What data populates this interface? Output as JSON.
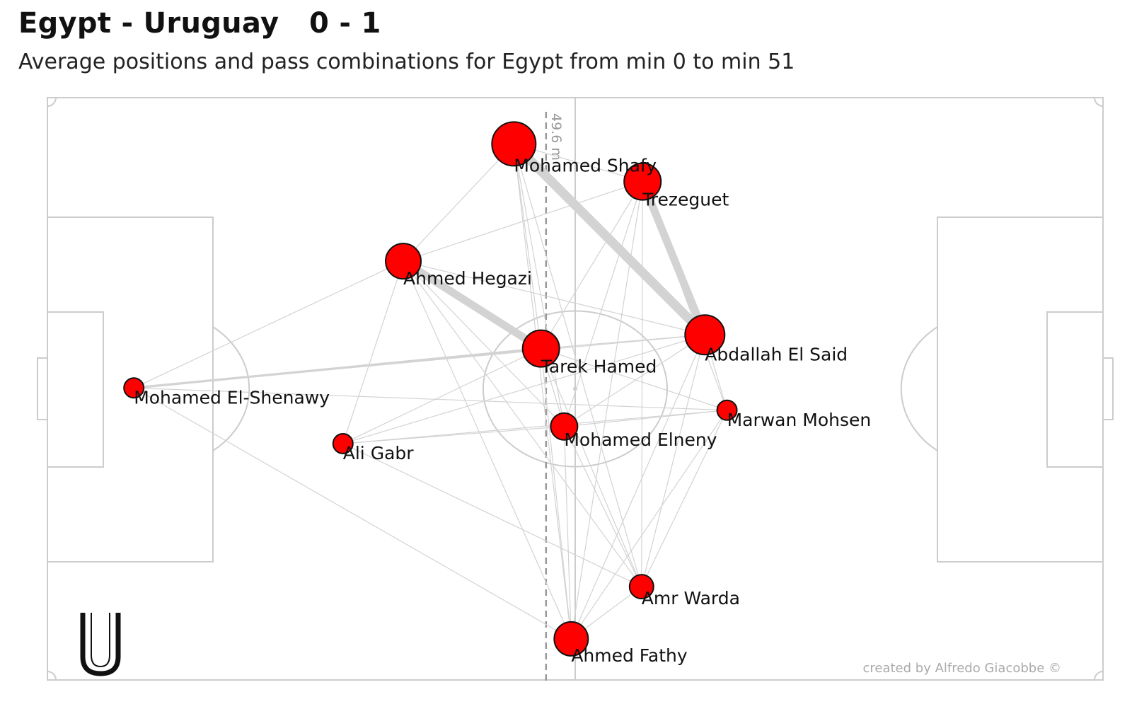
{
  "header": {
    "title": "Egypt - Uruguay   0 - 1",
    "subtitle": "Average positions and pass combinations for Egypt from min 0 to min 51"
  },
  "footer": {
    "credit": "created by Alfredo Giacobbe ©",
    "logo_letter": "U"
  },
  "colors": {
    "node_fill": "#ff0000",
    "node_stroke": "#111111",
    "edge": "#d3d3d3",
    "pitch_lines": "#cccccc",
    "avg_line": "#999999"
  },
  "chart_data": {
    "type": "network",
    "pitch": {
      "length_m": 105,
      "width_m": 68
    },
    "average_line": {
      "x_m": 49.6,
      "label": "49.6 m"
    },
    "nodes": [
      {
        "name": "Mohamed El-Shenawy",
        "x": 8.6,
        "y": 34.1,
        "size": 14
      },
      {
        "name": "Ali Gabr",
        "x": 29.4,
        "y": 27.6,
        "size": 14
      },
      {
        "name": "Ahmed Hegazi",
        "x": 35.4,
        "y": 48.9,
        "size": 25
      },
      {
        "name": "Tarek Hamed",
        "x": 49.1,
        "y": 38.7,
        "size": 26
      },
      {
        "name": "Mohamed Shafy",
        "x": 46.4,
        "y": 62.6,
        "size": 31
      },
      {
        "name": "Trezeguet",
        "x": 59.2,
        "y": 58.2,
        "size": 26
      },
      {
        "name": "Abdallah El Said",
        "x": 65.4,
        "y": 40.3,
        "size": 28
      },
      {
        "name": "Mohamed Elneny",
        "x": 51.4,
        "y": 29.6,
        "size": 19
      },
      {
        "name": "Marwan Mohsen",
        "x": 67.6,
        "y": 31.5,
        "size": 14
      },
      {
        "name": "Amr Warda",
        "x": 59.1,
        "y": 10.9,
        "size": 17
      },
      {
        "name": "Ahmed Fathy",
        "x": 52.1,
        "y": 4.8,
        "size": 24
      }
    ],
    "edges": [
      {
        "from": "Mohamed Shafy",
        "to": "Abdallah El Said",
        "weight": 6
      },
      {
        "from": "Trezeguet",
        "to": "Abdallah El Said",
        "weight": 5
      },
      {
        "from": "Ahmed Hegazi",
        "to": "Tarek Hamed",
        "weight": 5
      },
      {
        "from": "Mohamed El-Shenawy",
        "to": "Tarek Hamed",
        "weight": 1.5
      },
      {
        "from": "Mohamed El-Shenawy",
        "to": "Ahmed Hegazi",
        "weight": 1
      },
      {
        "from": "Mohamed El-Shenawy",
        "to": "Abdallah El Said",
        "weight": 1
      },
      {
        "from": "Mohamed El-Shenawy",
        "to": "Marwan Mohsen",
        "weight": 1
      },
      {
        "from": "Mohamed El-Shenawy",
        "to": "Ahmed Fathy",
        "weight": 1
      },
      {
        "from": "Ali Gabr",
        "to": "Ahmed Hegazi",
        "weight": 1
      },
      {
        "from": "Ali Gabr",
        "to": "Tarek Hamed",
        "weight": 1
      },
      {
        "from": "Ali Gabr",
        "to": "Mohamed Elneny",
        "weight": 1
      },
      {
        "from": "Ali Gabr",
        "to": "Marwan Mohsen",
        "weight": 1
      },
      {
        "from": "Ali Gabr",
        "to": "Abdallah El Said",
        "weight": 1
      },
      {
        "from": "Ali Gabr",
        "to": "Amr Warda",
        "weight": 1
      },
      {
        "from": "Ahmed Hegazi",
        "to": "Mohamed Shafy",
        "weight": 1
      },
      {
        "from": "Ahmed Hegazi",
        "to": "Trezeguet",
        "weight": 1
      },
      {
        "from": "Ahmed Hegazi",
        "to": "Abdallah El Said",
        "weight": 1
      },
      {
        "from": "Ahmed Hegazi",
        "to": "Mohamed Elneny",
        "weight": 1
      },
      {
        "from": "Ahmed Hegazi",
        "to": "Ahmed Fathy",
        "weight": 1
      },
      {
        "from": "Ahmed Hegazi",
        "to": "Amr Warda",
        "weight": 1
      },
      {
        "from": "Tarek Hamed",
        "to": "Mohamed Shafy",
        "weight": 1
      },
      {
        "from": "Tarek Hamed",
        "to": "Trezeguet",
        "weight": 1
      },
      {
        "from": "Tarek Hamed",
        "to": "Abdallah El Said",
        "weight": 1
      },
      {
        "from": "Tarek Hamed",
        "to": "Mohamed Elneny",
        "weight": 1
      },
      {
        "from": "Tarek Hamed",
        "to": "Ahmed Fathy",
        "weight": 1
      },
      {
        "from": "Tarek Hamed",
        "to": "Amr Warda",
        "weight": 1
      },
      {
        "from": "Tarek Hamed",
        "to": "Marwan Mohsen",
        "weight": 1
      },
      {
        "from": "Mohamed Shafy",
        "to": "Trezeguet",
        "weight": 1
      },
      {
        "from": "Mohamed Shafy",
        "to": "Mohamed Elneny",
        "weight": 1
      },
      {
        "from": "Mohamed Shafy",
        "to": "Ahmed Fathy",
        "weight": 1
      },
      {
        "from": "Mohamed Shafy",
        "to": "Amr Warda",
        "weight": 1
      },
      {
        "from": "Trezeguet",
        "to": "Mohamed Elneny",
        "weight": 1
      },
      {
        "from": "Trezeguet",
        "to": "Ahmed Fathy",
        "weight": 1
      },
      {
        "from": "Trezeguet",
        "to": "Amr Warda",
        "weight": 1
      },
      {
        "from": "Trezeguet",
        "to": "Marwan Mohsen",
        "weight": 1
      },
      {
        "from": "Abdallah El Said",
        "to": "Mohamed Elneny",
        "weight": 1
      },
      {
        "from": "Abdallah El Said",
        "to": "Marwan Mohsen",
        "weight": 1
      },
      {
        "from": "Abdallah El Said",
        "to": "Ahmed Fathy",
        "weight": 1
      },
      {
        "from": "Abdallah El Said",
        "to": "Amr Warda",
        "weight": 1
      },
      {
        "from": "Mohamed Elneny",
        "to": "Marwan Mohsen",
        "weight": 1
      },
      {
        "from": "Mohamed Elneny",
        "to": "Ahmed Fathy",
        "weight": 1
      },
      {
        "from": "Mohamed Elneny",
        "to": "Amr Warda",
        "weight": 1
      },
      {
        "from": "Marwan Mohsen",
        "to": "Ahmed Fathy",
        "weight": 1
      },
      {
        "from": "Marwan Mohsen",
        "to": "Amr Warda",
        "weight": 1
      },
      {
        "from": "Amr Warda",
        "to": "Ahmed Fathy",
        "weight": 1
      }
    ]
  }
}
